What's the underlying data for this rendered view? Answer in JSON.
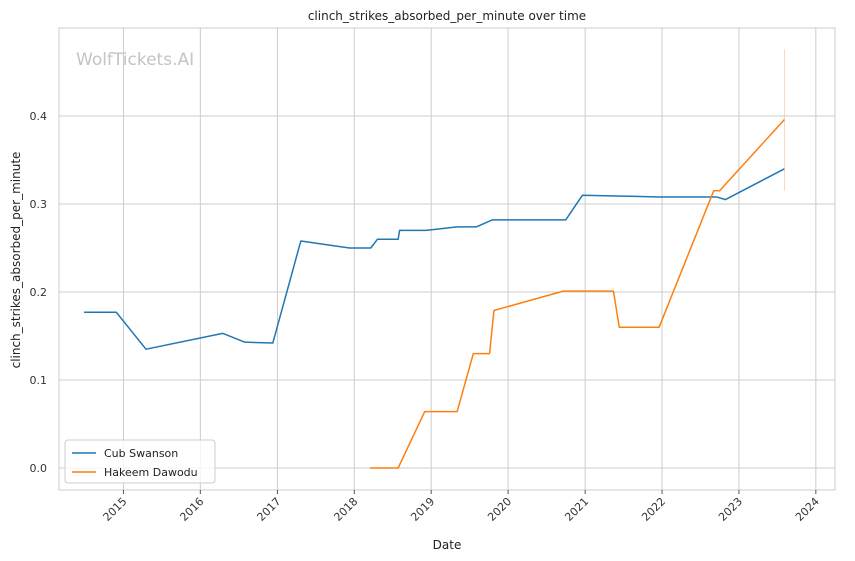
{
  "chart_data": {
    "type": "line",
    "title": "clinch_strikes_absorbed_per_minute over time",
    "xlabel": "Date",
    "ylabel": "clinch_strikes_absorbed_per_minute",
    "watermark": "WolfTickets.AI",
    "xlim": [
      "2014-03-01",
      "2024-04-01"
    ],
    "ylim": [
      -0.025,
      0.5
    ],
    "x_ticks": [
      "2015",
      "2016",
      "2017",
      "2018",
      "2019",
      "2020",
      "2021",
      "2022",
      "2023",
      "2024"
    ],
    "y_ticks": [
      0.0,
      0.1,
      0.2,
      0.3,
      0.4
    ],
    "y_tick_labels": [
      "0.0",
      "0.1",
      "0.2",
      "0.3",
      "0.4"
    ],
    "grid": true,
    "legend_position": "bottom-left",
    "series": [
      {
        "name": "Cub Swanson",
        "color": "#1f77b4",
        "points": [
          [
            "2014-06-28",
            0.177
          ],
          [
            "2014-11-28",
            0.177
          ],
          [
            "2015-04-18",
            0.135
          ],
          [
            "2016-04-16",
            0.153
          ],
          [
            "2016-07-30",
            0.143
          ],
          [
            "2016-12-10",
            0.142
          ],
          [
            "2017-04-22",
            0.258
          ],
          [
            "2017-12-09",
            0.25
          ],
          [
            "2018-03-20",
            0.25
          ],
          [
            "2018-04-21",
            0.26
          ],
          [
            "2018-07-28",
            0.26
          ],
          [
            "2018-08-04",
            0.27
          ],
          [
            "2018-12-08",
            0.27
          ],
          [
            "2019-05-04",
            0.274
          ],
          [
            "2019-08-03",
            0.274
          ],
          [
            "2019-10-19",
            0.282
          ],
          [
            "2020-10-01",
            0.282
          ],
          [
            "2020-12-19",
            0.31
          ],
          [
            "2021-06-26",
            0.309
          ],
          [
            "2021-12-18",
            0.308
          ],
          [
            "2022-09-17",
            0.308
          ],
          [
            "2022-10-29",
            0.305
          ],
          [
            "2023-08-05",
            0.34
          ]
        ]
      },
      {
        "name": "Hakeem Dawodu",
        "color": "#ff7f0e",
        "points": [
          [
            "2018-03-17",
            0.0
          ],
          [
            "2018-07-28",
            0.0
          ],
          [
            "2018-12-01",
            0.064
          ],
          [
            "2019-05-04",
            0.064
          ],
          [
            "2019-07-20",
            0.13
          ],
          [
            "2019-10-05",
            0.13
          ],
          [
            "2019-10-26",
            0.179
          ],
          [
            "2020-09-19",
            0.201
          ],
          [
            "2021-05-15",
            0.201
          ],
          [
            "2021-06-12",
            0.16
          ],
          [
            "2021-12-18",
            0.16
          ],
          [
            "2022-09-03",
            0.315
          ],
          [
            "2022-10-01",
            0.315
          ],
          [
            "2023-08-05",
            0.396
          ]
        ],
        "error_bar": {
          "x": "2023-08-05",
          "low": 0.315,
          "high": 0.476
        }
      }
    ]
  }
}
